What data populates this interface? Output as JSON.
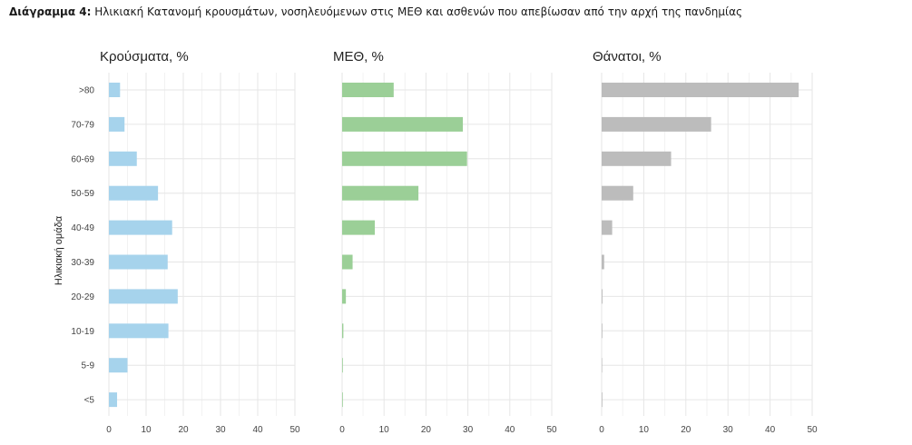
{
  "caption": {
    "label": "Διάγραμμα 4:",
    "text": "Ηλικιακή Κατανομή κρουσμάτων, νοσηλευόμενων στις ΜΕΘ και ασθενών που απεβίωσαν από την αρχή της πανδημίας"
  },
  "chart_data": {
    "type": "bar",
    "orientation": "horizontal",
    "ylabel": "Ηλικιακή ομάδα",
    "categories": [
      ">80",
      "70-79",
      "60-69",
      "50-59",
      "40-49",
      "30-39",
      "20-29",
      "10-19",
      "5-9",
      "<5"
    ],
    "xlim": [
      0,
      50
    ],
    "xticks": [
      0,
      10,
      20,
      30,
      40,
      50
    ],
    "grid": true,
    "panels": [
      {
        "title": "Κρούσματα, %",
        "color": "#a6d3ec",
        "values": [
          3.0,
          4.2,
          7.5,
          13.2,
          17.0,
          15.8,
          18.5,
          16.0,
          5.0,
          2.2
        ]
      },
      {
        "title": "ΜΕΘ, %",
        "color": "#9bcf97",
        "values": [
          12.3,
          28.8,
          29.8,
          18.2,
          7.8,
          2.5,
          0.9,
          0.3,
          0.1,
          0.1
        ]
      },
      {
        "title": "Θάνατοι, %",
        "color": "#bcbcbc",
        "values": [
          46.8,
          26.0,
          16.5,
          7.5,
          2.5,
          0.6,
          0.2,
          0.1,
          0.0,
          0.1
        ]
      }
    ]
  }
}
